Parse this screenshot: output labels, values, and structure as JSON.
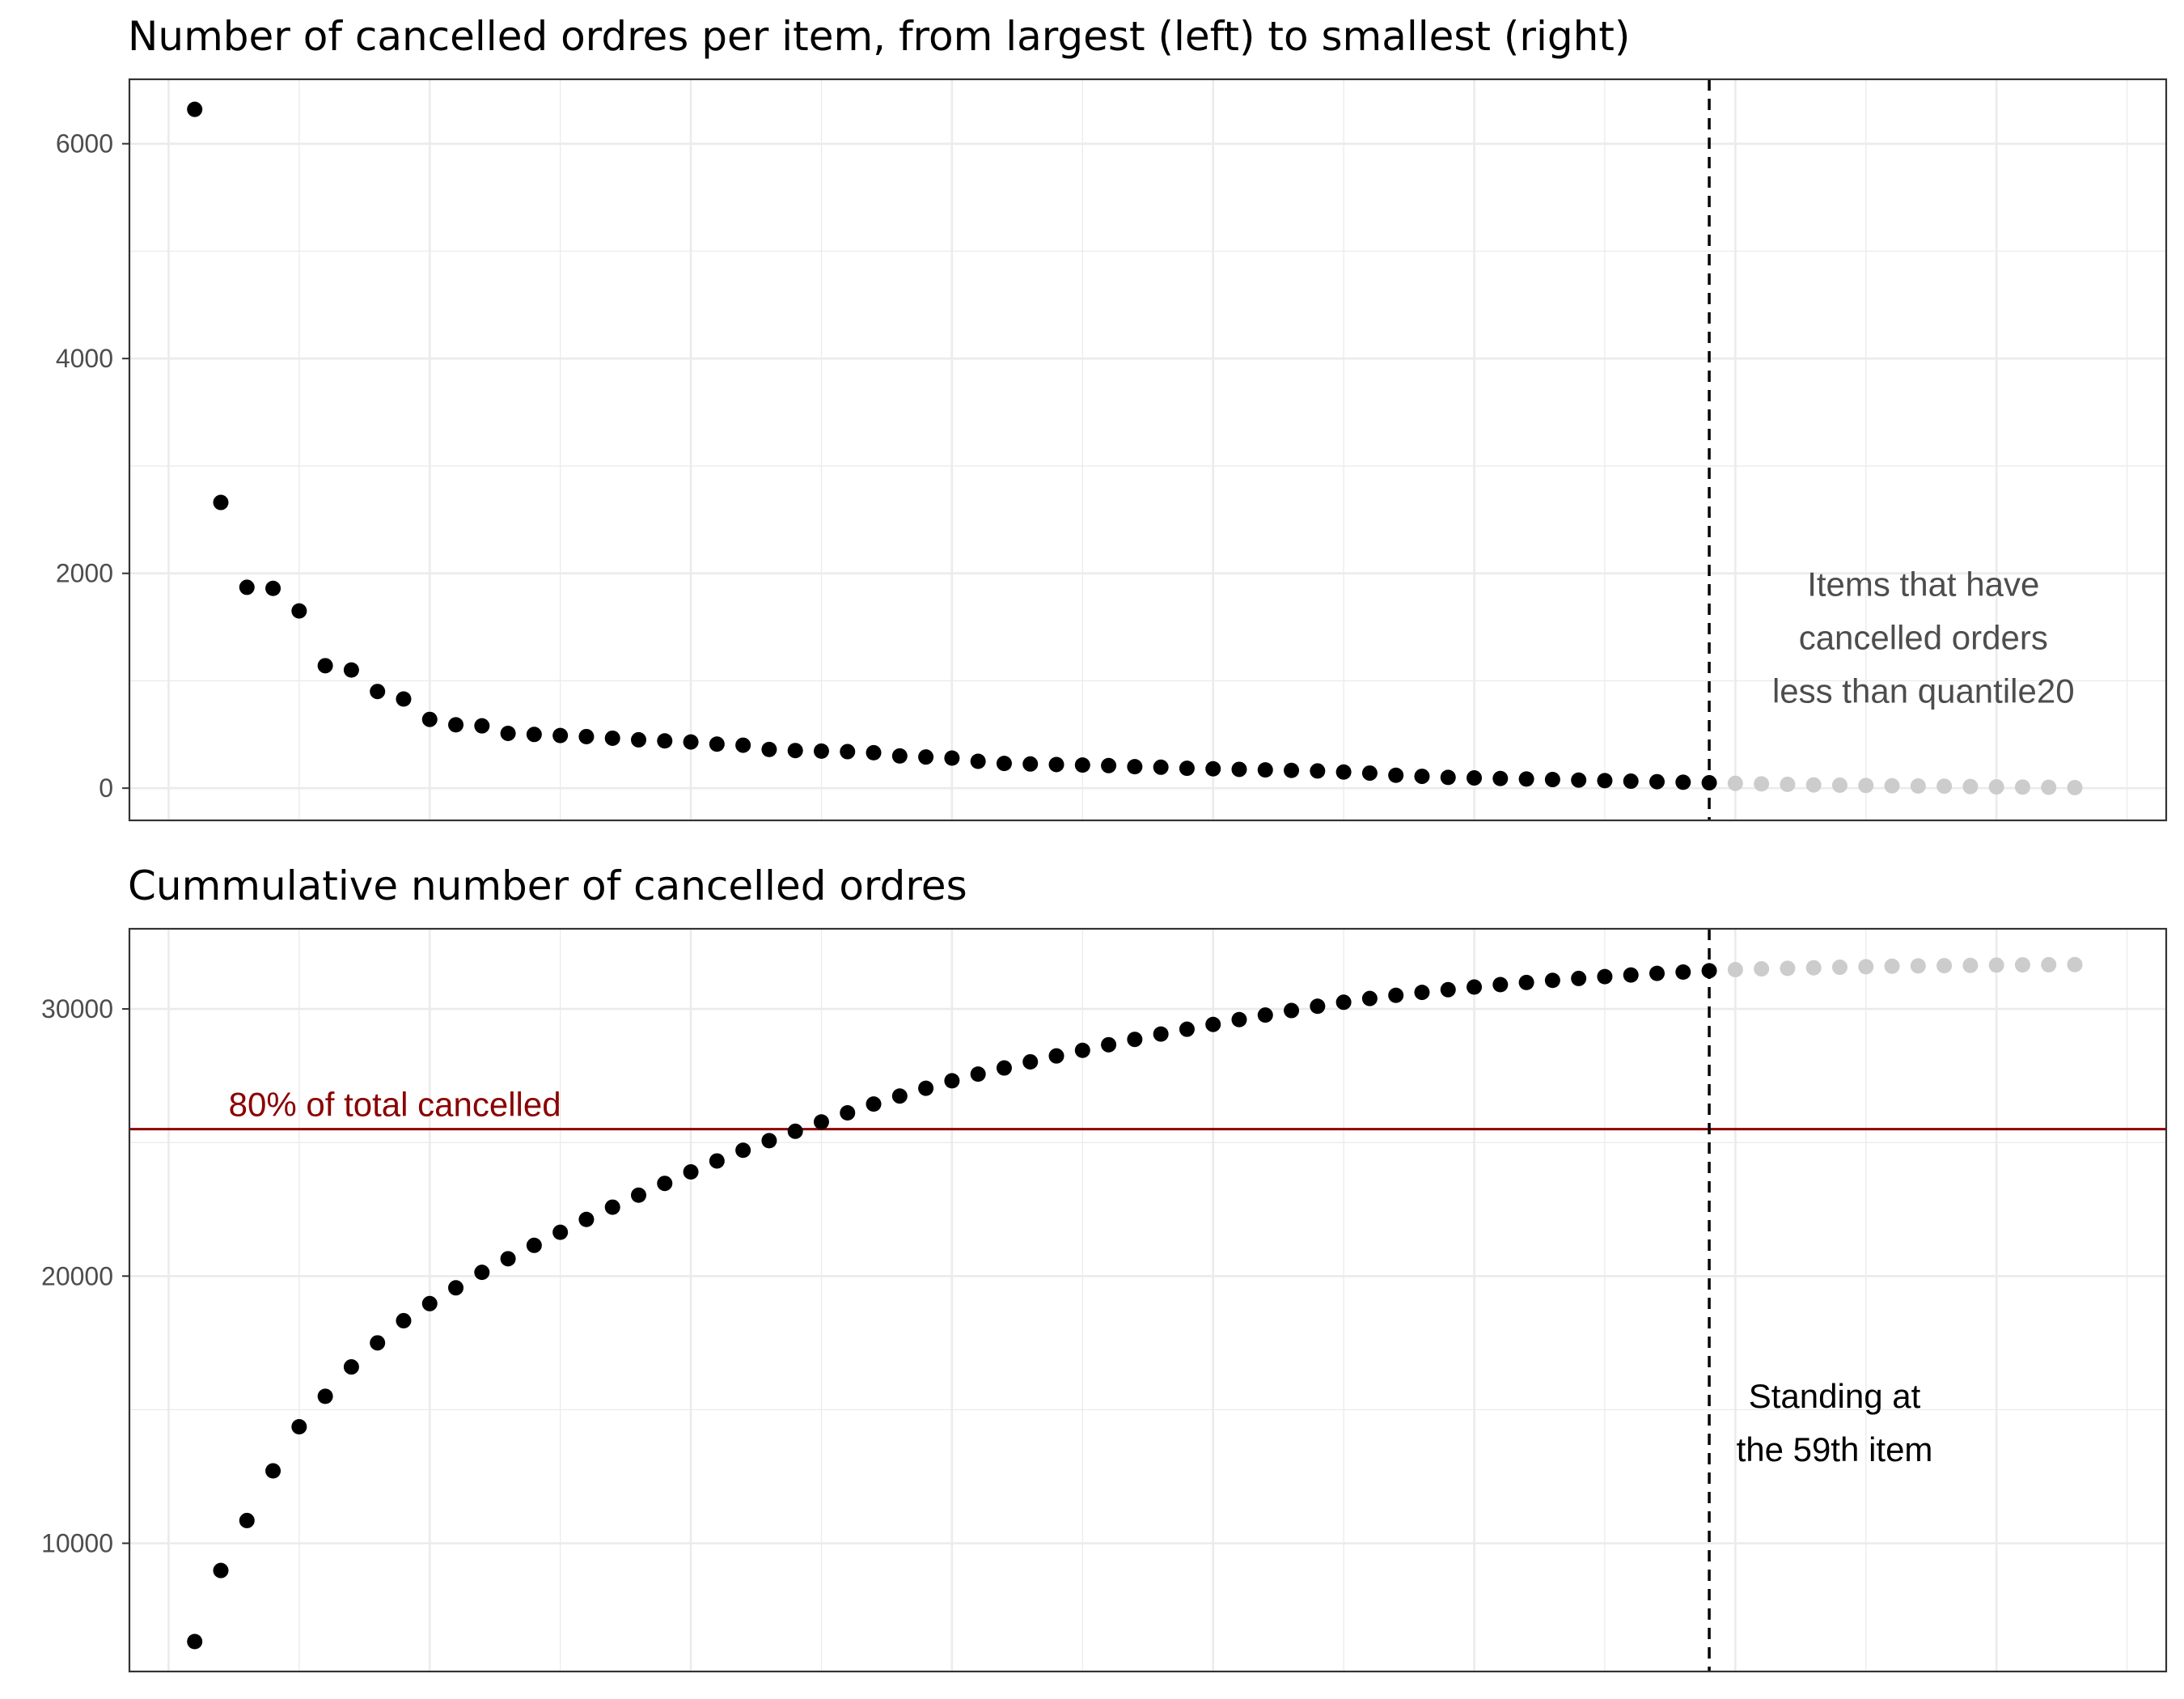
{
  "colors": {
    "point_main": "#000000",
    "point_tail": "#cccccc",
    "threshold_line": "#8b0000",
    "threshold_text": "#8b0000",
    "annotation_top": "#4d4d4d",
    "annotation_bottom": "#000000",
    "grid": "#ebebeb",
    "panel_border": "#333333"
  },
  "chart_data": [
    {
      "type": "scatter",
      "title": "Number of cancelled ordres per item, from largest (left) to smallest (right)",
      "xlabel": "",
      "ylabel": "",
      "xlim": [
        -1.5,
        76.5
      ],
      "ylim": [
        -300,
        6600
      ],
      "yticks": [
        0,
        2000,
        4000,
        6000
      ],
      "x_ticks_labels": [],
      "grid": true,
      "cutoff_x": 59,
      "series": [
        {
          "color_key": "point_main",
          "x": [
            1,
            2,
            3,
            4,
            5,
            6,
            7,
            8,
            9,
            10,
            11,
            12,
            13,
            14,
            15,
            16,
            17,
            18,
            19,
            20,
            21,
            22,
            23,
            24,
            25,
            26,
            27,
            28,
            29,
            30,
            31,
            32,
            33,
            34,
            35,
            36,
            37,
            38,
            39,
            40,
            41,
            42,
            43,
            44,
            45,
            46,
            47,
            48,
            49,
            50,
            51,
            52,
            53,
            54,
            55,
            56,
            57,
            58,
            59
          ],
          "values": [
            6320,
            2660,
            1870,
            1860,
            1650,
            1140,
            1100,
            900,
            830,
            640,
            590,
            580,
            510,
            500,
            490,
            480,
            465,
            450,
            440,
            430,
            410,
            400,
            360,
            350,
            345,
            340,
            330,
            300,
            290,
            280,
            250,
            230,
            225,
            220,
            215,
            210,
            200,
            195,
            185,
            180,
            175,
            170,
            165,
            160,
            150,
            140,
            120,
            110,
            100,
            95,
            90,
            85,
            80,
            75,
            70,
            65,
            60,
            55,
            50
          ]
        },
        {
          "color_key": "point_tail",
          "x": [
            60,
            61,
            62,
            63,
            64,
            65,
            66,
            67,
            68,
            69,
            70,
            71,
            72,
            73
          ],
          "values": [
            45,
            40,
            35,
            30,
            28,
            25,
            22,
            20,
            18,
            15,
            12,
            10,
            8,
            5
          ]
        }
      ],
      "annotations": [
        {
          "text_lines": [
            "Items that have",
            "cancelled orders",
            "less than quantile20"
          ],
          "x": 67.2,
          "y": 1400,
          "color_key": "annotation_top"
        }
      ]
    },
    {
      "type": "scatter",
      "title": "Cummulative number of cancelled ordres",
      "xlabel": "",
      "ylabel": "",
      "xlim": [
        -1.5,
        76.5
      ],
      "ylim": [
        5200,
        33000
      ],
      "yticks": [
        10000,
        20000,
        30000
      ],
      "x_ticks_labels": [],
      "grid": true,
      "cutoff_x": 59,
      "threshold": {
        "y": 25500,
        "label": "80% of total cancelled"
      },
      "series": [
        {
          "color_key": "point_main",
          "x": [
            1,
            2,
            3,
            4,
            5,
            6,
            7,
            8,
            9,
            10,
            11,
            12,
            13,
            14,
            15,
            16,
            17,
            18,
            19,
            20,
            21,
            22,
            23,
            24,
            25,
            26,
            27,
            28,
            29,
            30,
            31,
            32,
            33,
            34,
            35,
            36,
            37,
            38,
            39,
            40,
            41,
            42,
            43,
            44,
            45,
            46,
            47,
            48,
            49,
            50,
            51,
            52,
            53,
            54,
            55,
            56,
            57,
            58,
            59
          ],
          "values": [
            6320,
            8980,
            10850,
            12710,
            14360,
            15500,
            16600,
            17500,
            18330,
            18970,
            19560,
            20140,
            20650,
            21150,
            21640,
            22120,
            22580,
            23030,
            23470,
            23900,
            24310,
            24710,
            25070,
            25420,
            25770,
            26110,
            26440,
            26740,
            27030,
            27310,
            27560,
            27790,
            28020,
            28240,
            28450,
            28660,
            28860,
            29060,
            29240,
            29420,
            29600,
            29770,
            29940,
            30100,
            30250,
            30390,
            30510,
            30620,
            30720,
            30820,
            30910,
            30990,
            31070,
            31140,
            31210,
            31270,
            31330,
            31380,
            31430
          ]
        },
        {
          "color_key": "point_tail",
          "x": [
            60,
            61,
            62,
            63,
            64,
            65,
            66,
            67,
            68,
            69,
            70,
            71,
            72,
            73
          ],
          "values": [
            31470,
            31500,
            31520,
            31540,
            31560,
            31580,
            31600,
            31610,
            31620,
            31630,
            31640,
            31650,
            31655,
            31660
          ]
        }
      ],
      "annotations": [
        {
          "text_lines": [
            "Standing at",
            "the 59th item"
          ],
          "x": 63.8,
          "y": 14500,
          "color_key": "annotation_bottom"
        }
      ]
    }
  ]
}
